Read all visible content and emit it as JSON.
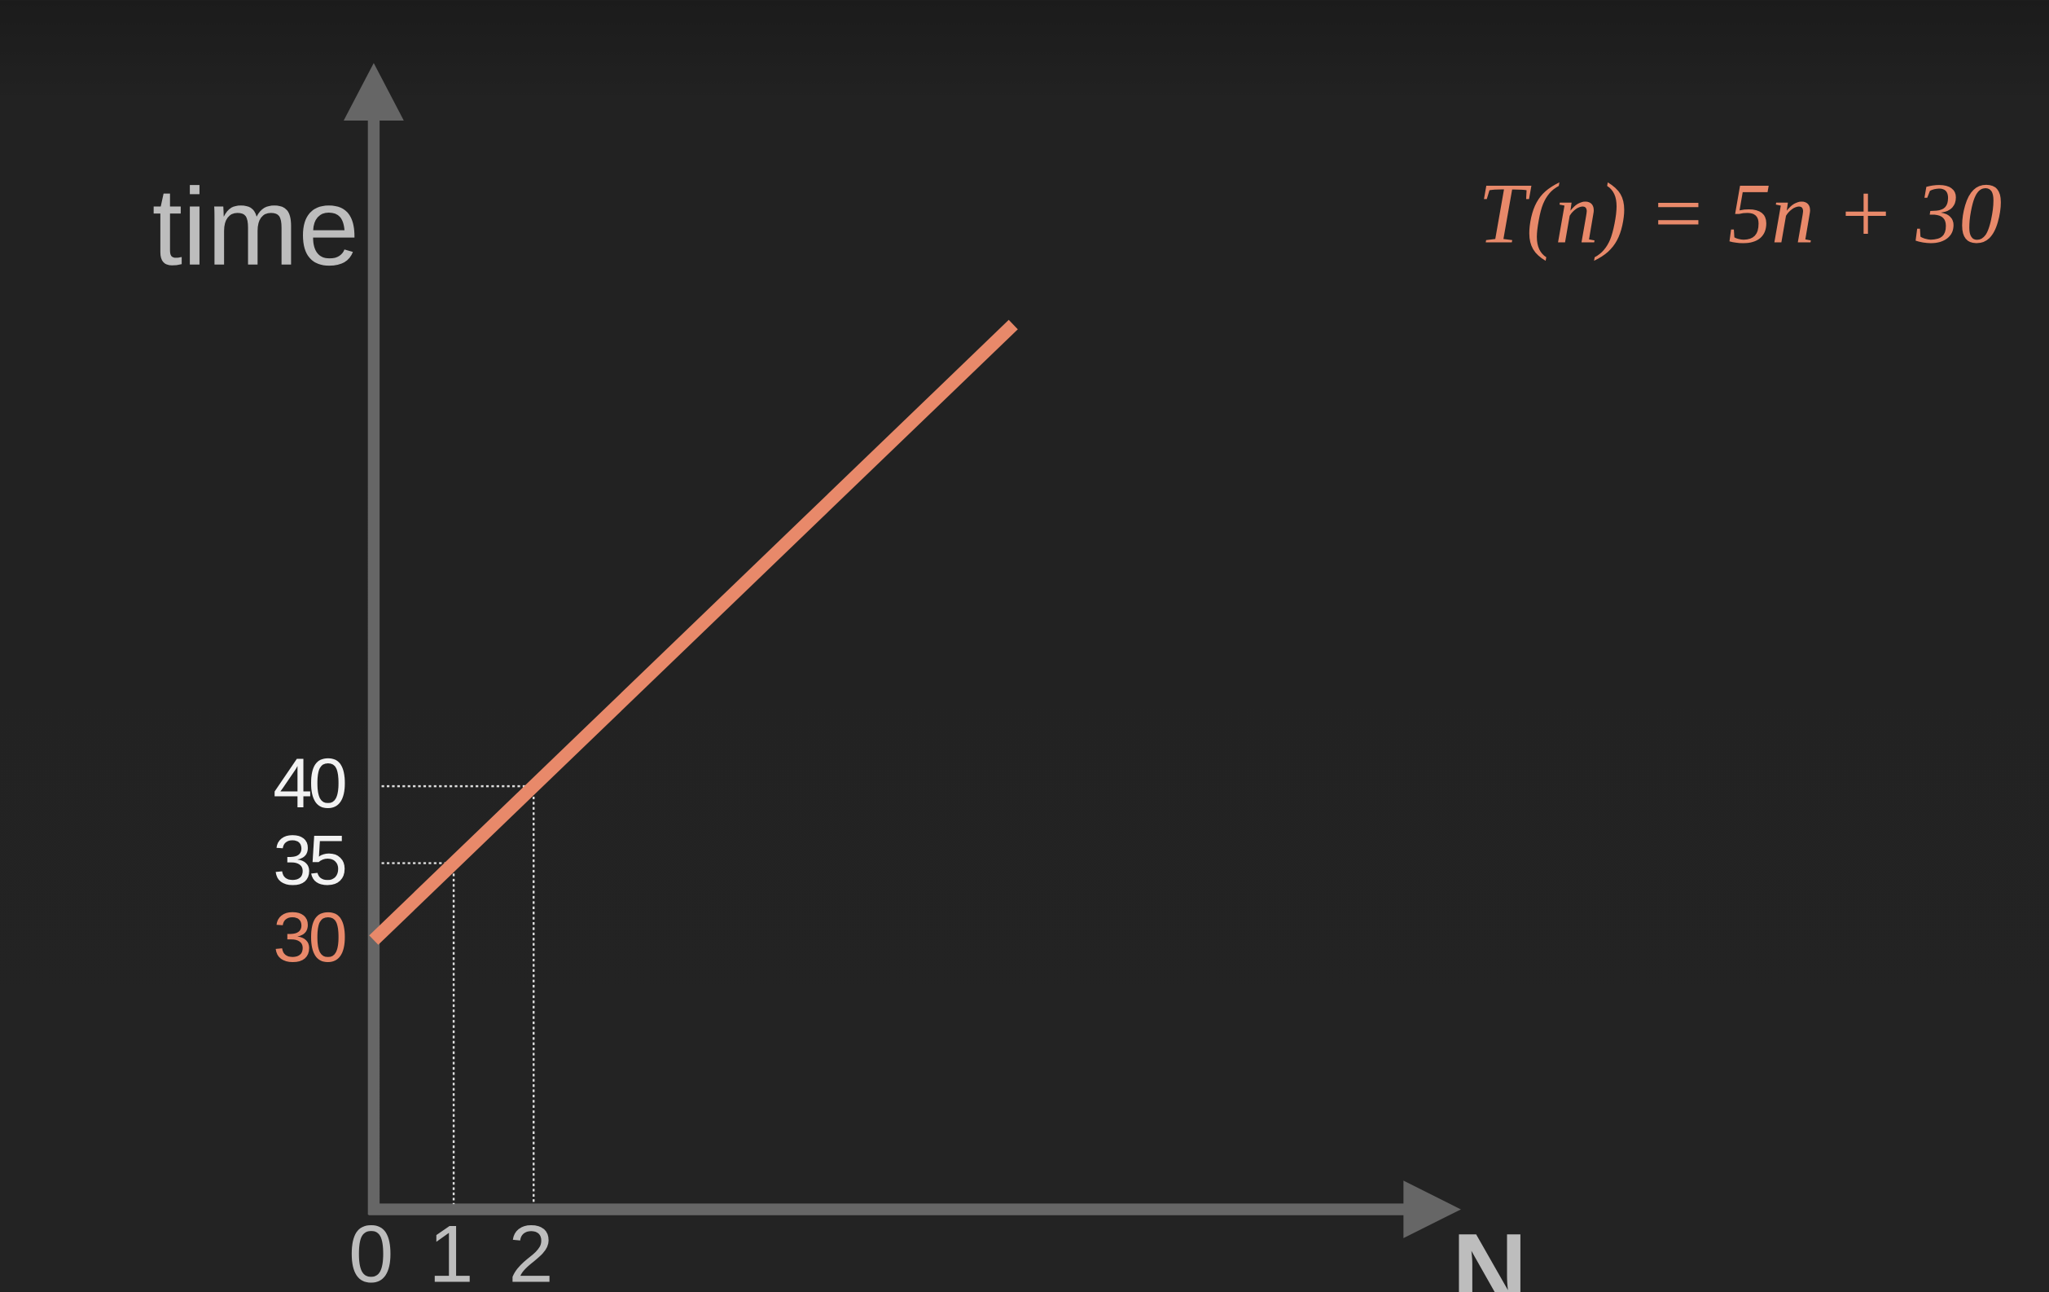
{
  "chart_data": {
    "type": "line",
    "annotation": "T(n) = 5n + 30",
    "ylabel": "time",
    "xlabel": "N",
    "x": [
      0,
      1,
      2,
      8
    ],
    "series": [
      {
        "color": "#e8896a",
        "values": [
          30,
          35,
          40,
          70
        ]
      }
    ],
    "xlim": [
      0,
      13.6
    ],
    "ylim": [
      12.5,
      87
    ],
    "xticks": [
      0,
      1,
      2
    ],
    "yticks": [
      30,
      35,
      40
    ],
    "guides": true
  }
}
